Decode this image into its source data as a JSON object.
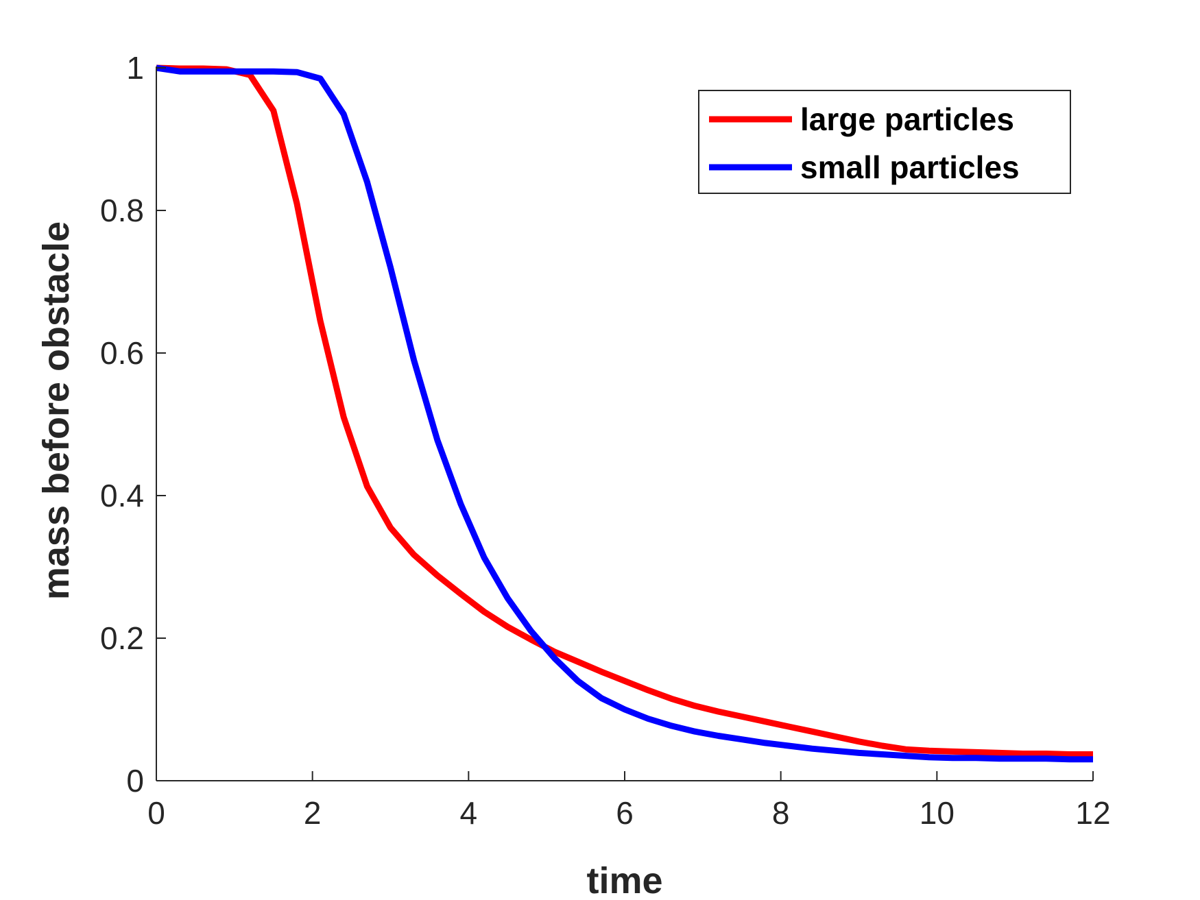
{
  "chart_data": {
    "type": "line",
    "title": "",
    "xlabel": "time",
    "ylabel": "mass before obstacle",
    "xlim": [
      0,
      12
    ],
    "ylim": [
      0,
      1
    ],
    "xticks": [
      0,
      2,
      4,
      6,
      8,
      10,
      12
    ],
    "xtick_labels": [
      "0",
      "2",
      "4",
      "6",
      "8",
      "10",
      "12"
    ],
    "yticks": [
      0,
      0.2,
      0.4,
      0.6,
      0.8,
      1
    ],
    "ytick_labels": [
      "0",
      "0.2",
      "0.4",
      "0.6",
      "0.8",
      "1"
    ],
    "grid": false,
    "legend_position": "top-right",
    "series": [
      {
        "name": "large particles",
        "color": "#ff0000",
        "x": [
          0,
          0.3,
          0.6,
          0.9,
          1.2,
          1.5,
          1.8,
          2.1,
          2.4,
          2.7,
          3.0,
          3.3,
          3.6,
          3.9,
          4.2,
          4.5,
          4.8,
          5.1,
          5.4,
          5.7,
          6.0,
          6.3,
          6.6,
          6.9,
          7.2,
          7.5,
          7.8,
          8.1,
          8.4,
          8.7,
          9.0,
          9.3,
          9.6,
          9.9,
          10.2,
          10.5,
          10.8,
          11.1,
          11.4,
          11.7,
          12.0
        ],
        "y": [
          1.0,
          0.999,
          0.999,
          0.998,
          0.99,
          0.94,
          0.81,
          0.645,
          0.51,
          0.413,
          0.355,
          0.317,
          0.288,
          0.262,
          0.237,
          0.216,
          0.198,
          0.181,
          0.167,
          0.153,
          0.14,
          0.127,
          0.115,
          0.105,
          0.097,
          0.09,
          0.083,
          0.076,
          0.069,
          0.062,
          0.055,
          0.049,
          0.044,
          0.042,
          0.041,
          0.04,
          0.039,
          0.038,
          0.038,
          0.037,
          0.037
        ]
      },
      {
        "name": "small particles",
        "color": "#0000ff",
        "x": [
          0,
          0.3,
          0.6,
          0.9,
          1.2,
          1.5,
          1.8,
          2.1,
          2.4,
          2.7,
          3.0,
          3.3,
          3.6,
          3.9,
          4.2,
          4.5,
          4.8,
          5.1,
          5.4,
          5.7,
          6.0,
          6.3,
          6.6,
          6.9,
          7.2,
          7.5,
          7.8,
          8.1,
          8.4,
          8.7,
          9.0,
          9.3,
          9.6,
          9.9,
          10.2,
          10.5,
          10.8,
          11.1,
          11.4,
          11.7,
          12.0
        ],
        "y": [
          1.0,
          0.995,
          0.995,
          0.995,
          0.995,
          0.995,
          0.994,
          0.985,
          0.935,
          0.84,
          0.72,
          0.59,
          0.478,
          0.388,
          0.313,
          0.256,
          0.21,
          0.172,
          0.14,
          0.116,
          0.1,
          0.087,
          0.077,
          0.069,
          0.063,
          0.058,
          0.053,
          0.049,
          0.045,
          0.042,
          0.039,
          0.037,
          0.035,
          0.033,
          0.032,
          0.032,
          0.031,
          0.031,
          0.031,
          0.03,
          0.03
        ]
      }
    ]
  }
}
